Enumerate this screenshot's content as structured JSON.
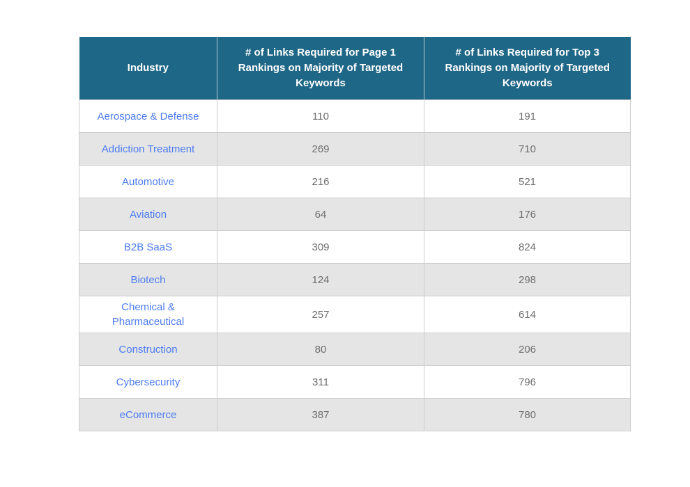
{
  "colors": {
    "page_bg": "#ffffff",
    "header_bg": "#1f6787",
    "header_text": "#ffffff",
    "header_divider": "#b9cbd4",
    "link_blue": "#4c7bf0",
    "value_gray": "#6e6e6e",
    "stripe_gray": "#e5e5e5",
    "border_gray": "#cccccc"
  },
  "table": {
    "headers": {
      "industry": "Industry",
      "page1": "# of Links Required for Page 1 Rankings on Majority of Targeted Keywords",
      "top3": "# of Links Required for Top 3 Rankings on Majority of Targeted Keywords"
    },
    "rows": [
      {
        "industry": "Aerospace & Defense",
        "page1": "110",
        "top3": "191"
      },
      {
        "industry": "Addiction Treatment",
        "page1": "269",
        "top3": "710"
      },
      {
        "industry": "Automotive",
        "page1": "216",
        "top3": "521"
      },
      {
        "industry": "Aviation",
        "page1": "64",
        "top3": "176"
      },
      {
        "industry": "B2B SaaS",
        "page1": "309",
        "top3": "824"
      },
      {
        "industry": "Biotech",
        "page1": "124",
        "top3": "298"
      },
      {
        "industry": "Chemical & Pharmaceutical",
        "page1": "257",
        "top3": "614"
      },
      {
        "industry": "Construction",
        "page1": "80",
        "top3": "206"
      },
      {
        "industry": "Cybersecurity",
        "page1": "311",
        "top3": "796"
      },
      {
        "industry": "eCommerce",
        "page1": "387",
        "top3": "780"
      }
    ]
  },
  "chart_data": {
    "type": "table",
    "columns": [
      "Industry",
      "# of Links Required for Page 1 Rankings on Majority of Targeted Keywords",
      "# of Links Required for Top 3 Rankings on Majority of Targeted Keywords"
    ],
    "rows": [
      [
        "Aerospace & Defense",
        110,
        191
      ],
      [
        "Addiction Treatment",
        269,
        710
      ],
      [
        "Automotive",
        216,
        521
      ],
      [
        "Aviation",
        64,
        176
      ],
      [
        "B2B SaaS",
        309,
        824
      ],
      [
        "Biotech",
        124,
        298
      ],
      [
        "Chemical & Pharmaceutical",
        257,
        614
      ],
      [
        "Construction",
        80,
        206
      ],
      [
        "Cybersecurity",
        311,
        796
      ],
      [
        "eCommerce",
        387,
        780
      ]
    ],
    "layout_hints": {
      "striped_rows": true,
      "header_bg": "#1f6787",
      "industry_cells_are_links": true
    }
  }
}
